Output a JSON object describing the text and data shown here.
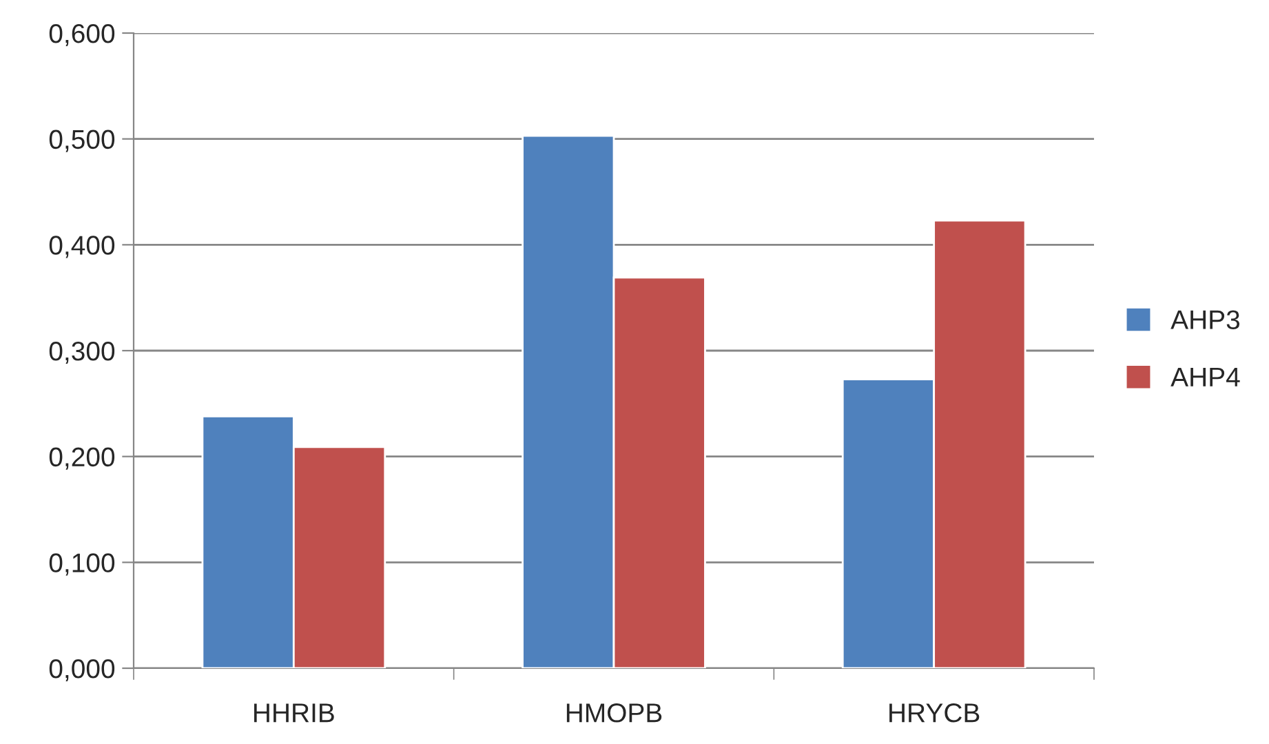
{
  "chart_data": {
    "type": "bar",
    "categories": [
      "HHRIB",
      "HMOPB",
      "HRYCB"
    ],
    "series": [
      {
        "name": "AHP3",
        "color": "#4f81bd",
        "values": [
          0.238,
          0.503,
          0.273
        ]
      },
      {
        "name": "AHP4",
        "color": "#c0504d",
        "values": [
          0.209,
          0.369,
          0.423
        ]
      }
    ],
    "ylim": [
      0,
      0.6
    ],
    "yticks": [
      {
        "value": 0,
        "label": "0,000"
      },
      {
        "value": 0.1,
        "label": "0,100"
      },
      {
        "value": 0.2,
        "label": "0,200"
      },
      {
        "value": 0.3,
        "label": "0,300"
      },
      {
        "value": 0.4,
        "label": "0,400"
      },
      {
        "value": 0.5,
        "label": "0,500"
      },
      {
        "value": 0.6,
        "label": "0,600"
      }
    ],
    "grid": "y",
    "legend": "right"
  }
}
